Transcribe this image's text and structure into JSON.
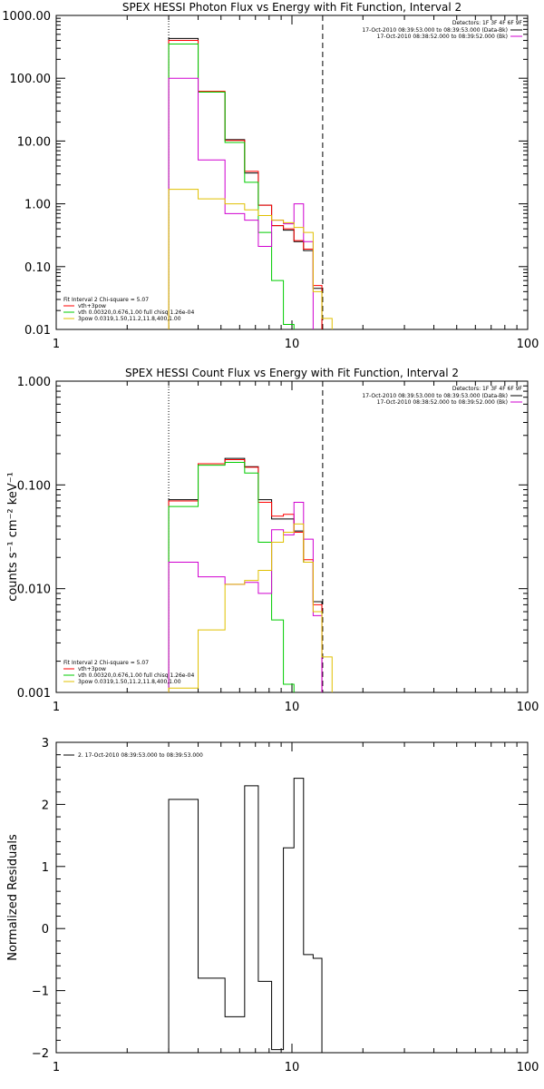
{
  "chart_data": [
    {
      "type": "line",
      "title": "SPEX HESSI Photon Flux vs Energy with Fit Function, Interval 2",
      "ylabel": "",
      "xlim": [
        1,
        100
      ],
      "ylim": [
        0.01,
        1000
      ],
      "xscale": "log",
      "yscale": "log",
      "xticks": [
        "1",
        "10",
        "100"
      ],
      "yticks": [
        "0.01",
        "0.10",
        "1.00",
        "10.00",
        "100.00",
        "1000.00"
      ],
      "fit_lo": 3.0,
      "fit_hi": 13.5,
      "legend_right": {
        "title": "Detectors: 1F 3F 4F 6F 9F",
        "entries": [
          {
            "label": "17-Oct-2010 08:39:53.000 to 08:39:53.000 (Data-Bk)",
            "color": "#000000"
          },
          {
            "label": "17-Oct-2010 08:38:52.000 to 08:39:52.000 (Bk)",
            "color": "#d000d0"
          }
        ]
      },
      "legend_left": {
        "title": "Fit Interval 2   Chi-square = 5.07",
        "entries": [
          {
            "label": "vth+3pow",
            "color": "#ff0000"
          },
          {
            "label": "vth 0.00320,0.676,1.00   full chisq 1.26e-04",
            "color": "#00cc00"
          },
          {
            "label": "3pow 0.0319,1.50,11.2,11.8,400,1.00",
            "color": "#e0c000"
          }
        ]
      },
      "edges": [
        3.0,
        4.0,
        5.2,
        6.3,
        7.2,
        8.2,
        9.2,
        10.2,
        11.2,
        12.3,
        13.4,
        14.8
      ],
      "series": [
        {
          "color": "#000000",
          "values": [
            430,
            60,
            10.5,
            3.1,
            0.95,
            0.45,
            0.38,
            0.25,
            0.18,
            0.045,
            null
          ]
        },
        {
          "color": "#ff0000",
          "values": [
            400,
            62,
            10.2,
            3.3,
            0.95,
            0.45,
            0.4,
            0.26,
            0.19,
            0.05,
            null
          ]
        },
        {
          "color": "#00cc00",
          "values": [
            350,
            60,
            9.5,
            2.2,
            0.35,
            0.06,
            0.012,
            null,
            null,
            null,
            null
          ]
        },
        {
          "color": "#d000d0",
          "values": [
            100,
            5,
            0.7,
            0.55,
            0.21,
            0.55,
            0.48,
            1.0,
            0.25,
            null,
            null
          ]
        },
        {
          "color": "#e0c000",
          "values": [
            1.7,
            1.2,
            1.0,
            0.8,
            0.65,
            0.55,
            0.5,
            0.42,
            0.35,
            0.04,
            0.015
          ]
        }
      ]
    },
    {
      "type": "line",
      "title": "SPEX HESSI Count Flux vs Energy with Fit Function, Interval 2",
      "ylabel": "counts s⁻¹ cm⁻² keV⁻¹",
      "xlim": [
        1,
        100
      ],
      "ylim": [
        0.001,
        1
      ],
      "xscale": "log",
      "yscale": "log",
      "xticks": [
        "1",
        "10",
        "100"
      ],
      "yticks": [
        "0.001",
        "0.010",
        "0.100",
        "1.000"
      ],
      "fit_lo": 3.0,
      "fit_hi": 13.5,
      "legend_right": {
        "title": "Detectors: 1F 3F 4F 6F 9F",
        "entries": [
          {
            "label": "17-Oct-2010 08:39:53.000 to 08:39:53.000 (Data-Bk)",
            "color": "#000000"
          },
          {
            "label": "17-Oct-2010 08:38:52.000 to 08:39:52.000 (Bk)",
            "color": "#d000d0"
          }
        ]
      },
      "legend_left": {
        "title": "Fit Interval 2   Chi-square = 5.07",
        "entries": [
          {
            "label": "vth+3pow",
            "color": "#ff0000"
          },
          {
            "label": "vth 0.00320,0.676,1.00   full chisq 1.26e-04",
            "color": "#00cc00"
          },
          {
            "label": "3pow 0.0319,1.50,11.2,11.8,400,1.00",
            "color": "#e0c000"
          }
        ]
      },
      "edges": [
        3.0,
        4.0,
        5.2,
        6.3,
        7.2,
        8.2,
        9.2,
        10.2,
        11.2,
        12.3,
        13.4,
        14.8
      ],
      "series": [
        {
          "color": "#000000",
          "values": [
            0.072,
            0.16,
            0.18,
            0.15,
            0.072,
            0.047,
            0.047,
            0.036,
            0.018,
            0.0075,
            null
          ]
        },
        {
          "color": "#ff0000",
          "values": [
            0.07,
            0.16,
            0.175,
            0.148,
            0.068,
            0.05,
            0.052,
            0.035,
            0.019,
            0.007,
            null
          ]
        },
        {
          "color": "#00cc00",
          "values": [
            0.062,
            0.155,
            0.165,
            0.13,
            0.028,
            0.005,
            0.0012,
            null,
            null,
            null,
            null
          ]
        },
        {
          "color": "#d000d0",
          "values": [
            0.018,
            0.013,
            0.011,
            0.0115,
            0.009,
            0.037,
            0.033,
            0.068,
            0.03,
            0.0055,
            null
          ]
        },
        {
          "color": "#e0c000",
          "values": [
            0.0011,
            0.004,
            0.011,
            0.012,
            0.015,
            0.028,
            0.035,
            0.042,
            0.018,
            0.006,
            0.0022
          ]
        }
      ]
    },
    {
      "type": "line",
      "title": "",
      "ylabel": "Normalized Residuals",
      "xlim": [
        1,
        100
      ],
      "ylim": [
        -2,
        3
      ],
      "xscale": "log",
      "yscale": "linear",
      "xticks": [
        "1",
        "10",
        "100"
      ],
      "yticks": [
        "−2",
        "−1",
        "0",
        "1",
        "2",
        "3"
      ],
      "legend_left": {
        "title": "",
        "entries": [
          {
            "label": "2. 17-Oct-2010 08:39:53.000 to 08:39:53.000",
            "color": "#000000"
          }
        ]
      },
      "edges": [
        3.0,
        4.0,
        5.2,
        6.3,
        7.2,
        8.2,
        9.2,
        10.2,
        11.2,
        12.3,
        13.4
      ],
      "series": [
        {
          "color": "#000000",
          "values": [
            2.08,
            -0.8,
            -1.42,
            2.3,
            -0.85,
            -1.95,
            1.3,
            2.42,
            -0.42,
            -0.48
          ]
        }
      ]
    }
  ]
}
